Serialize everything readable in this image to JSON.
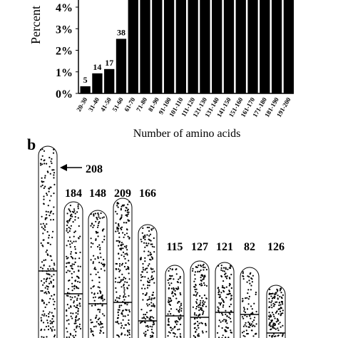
{
  "chart_data": [
    {
      "type": "bar",
      "y_label": "Percent",
      "x_label": "Number of amino acids",
      "categories": [
        "20-30",
        "31-40",
        "41-50",
        "51-60",
        "61-70",
        "71-80",
        "81-90",
        "91-100",
        "101-110",
        "111-120",
        "121-130",
        "131-140",
        "141-150",
        "151-160",
        "161-170",
        "171-180",
        "181-190",
        "191-200"
      ],
      "values": [
        0.33,
        0.93,
        1.13,
        2.53,
        4.5,
        4.5,
        4.5,
        4.5,
        4.5,
        4.5,
        4.5,
        4.5,
        4.5,
        4.5,
        4.5,
        4.5,
        4.5,
        4.5
      ],
      "counts": [
        5,
        14,
        17,
        38,
        null,
        null,
        null,
        null,
        null,
        null,
        null,
        null,
        null,
        null,
        null,
        null,
        null,
        null
      ],
      "color": "#000000",
      "ylim": [
        0,
        4.35
      ],
      "yticks": [
        {
          "value": 0,
          "label": "0%"
        },
        {
          "value": 1,
          "label": "1%"
        },
        {
          "value": 2,
          "label": "2%"
        },
        {
          "value": 3,
          "label": "3%"
        },
        {
          "value": 4,
          "label": "4%"
        }
      ]
    },
    {
      "type": "dotplot",
      "panel_label": "b",
      "values": [
        208,
        184,
        148,
        209,
        166,
        115,
        127,
        121,
        82,
        126
      ]
    }
  ]
}
